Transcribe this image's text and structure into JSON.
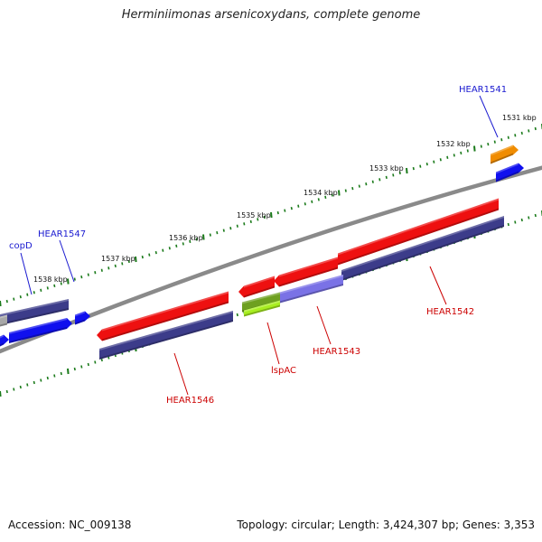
{
  "title": "Herminiimonas arsenicoxydans, complete genome",
  "footer": {
    "accession": "Accession: NC_009138",
    "summary": "Topology: circular; Length: 3,424,307 bp; Genes: 3,353"
  },
  "scale": {
    "ticks": [
      "1531 kbp",
      "1532 kbp",
      "1533 kbp",
      "1534 kbp",
      "1535 kbp",
      "1536 kbp",
      "1537 kbp",
      "1538 kbp"
    ]
  },
  "genes": {
    "forward_labels": [
      "HEAR1541",
      "HEAR1547",
      "copD"
    ],
    "reverse_labels": [
      "HEAR1542",
      "HEAR1543",
      "lspAC",
      "HEAR1546"
    ]
  },
  "colors": {
    "label_blue": "#1a1ad0",
    "label_red": "#cc0000",
    "backbone": "#8a8a8a",
    "tick_green": "#1a7a1a",
    "gene_red": "#ee1010",
    "gene_navy": "#3c3c8a",
    "gene_blue": "#1010ee",
    "gene_orange": "#f08c00",
    "gene_olive": "#6ea020",
    "gene_lime": "#a8ee20",
    "gene_lavender": "#7a72e6",
    "gene_grey": "#a8a8a8"
  }
}
